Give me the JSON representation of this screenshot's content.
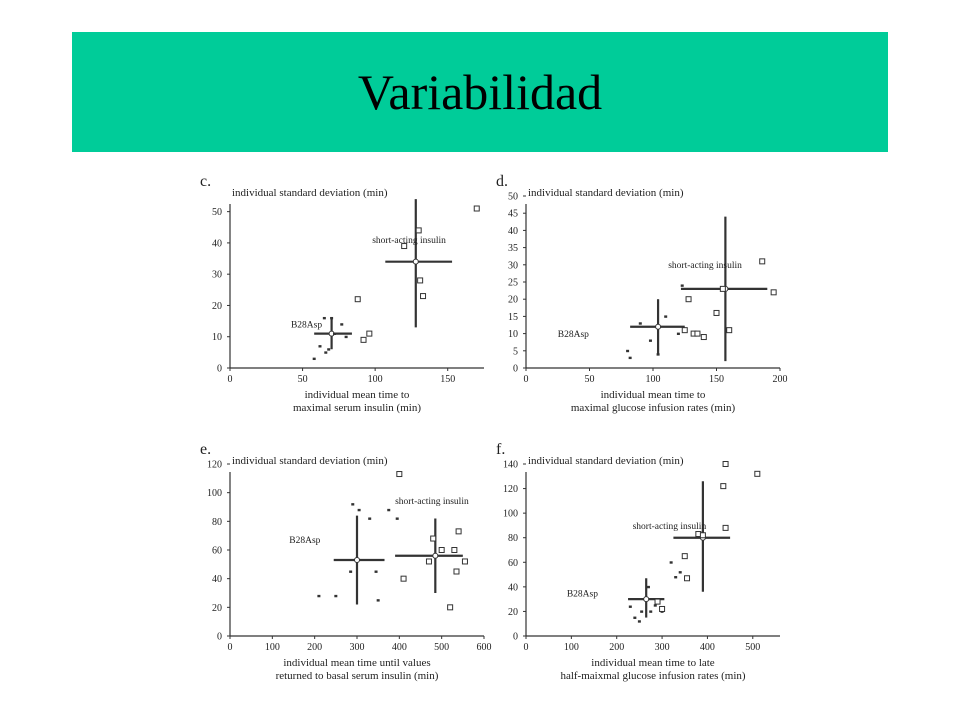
{
  "slide": {
    "title": "Variabilidad",
    "banner_color": "#00cc99"
  },
  "chart_data": [
    {
      "panel": "c.",
      "type": "scatter",
      "ylabel": "individual standard deviation (min)",
      "xlabel": [
        "individual mean time to",
        "maximal serum insulin (min)"
      ],
      "xlim": [
        0,
        175
      ],
      "ylim": [
        0,
        55
      ],
      "xticks": [
        0,
        50,
        100,
        150
      ],
      "yticks": [
        0,
        10,
        20,
        30,
        40,
        50
      ],
      "annotations": [
        {
          "text": "short-acting insulin",
          "at": [
            98,
            40
          ]
        },
        {
          "text": "B28Asp",
          "at": [
            42,
            13
          ]
        }
      ],
      "series": [
        {
          "name": "B28Asp",
          "marker": "dot",
          "points": [
            [
              58,
              3
            ],
            [
              62,
              7
            ],
            [
              65,
              16
            ],
            [
              66,
              5
            ],
            [
              68,
              6
            ],
            [
              70,
              16
            ],
            [
              72,
              11
            ],
            [
              77,
              14
            ],
            [
              80,
              10
            ]
          ]
        },
        {
          "name": "short-acting insulin",
          "marker": "square",
          "points": [
            [
              88,
              22
            ],
            [
              92,
              9
            ],
            [
              96,
              11
            ],
            [
              120,
              39
            ],
            [
              130,
              44
            ],
            [
              131,
              28
            ],
            [
              133,
              23
            ],
            [
              170,
              51
            ]
          ]
        }
      ],
      "crosses": [
        {
          "series": "B28Asp",
          "mean": [
            70,
            11
          ],
          "xerr": [
            58,
            84
          ],
          "yerr": [
            6,
            16
          ]
        },
        {
          "series": "short-acting insulin",
          "mean": [
            128,
            34
          ],
          "xerr": [
            107,
            153
          ],
          "yerr": [
            13,
            54
          ]
        }
      ]
    },
    {
      "panel": "d.",
      "type": "scatter",
      "ylabel": "individual standard deviation (min)",
      "xlabel": [
        "individual mean time to",
        "maximal glucose infusion rates (min)"
      ],
      "xlim": [
        0,
        200
      ],
      "ylim": [
        0,
        50
      ],
      "xticks": [
        0,
        50,
        100,
        150,
        200
      ],
      "yticks": [
        0,
        5,
        10,
        15,
        20,
        25,
        30,
        35,
        40,
        45,
        50
      ],
      "annotations": [
        {
          "text": "short-acting insulin",
          "at": [
            112,
            29
          ]
        },
        {
          "text": "B28Asp",
          "at": [
            25,
            9
          ]
        }
      ],
      "series": [
        {
          "name": "B28Asp",
          "marker": "dot",
          "points": [
            [
              80,
              5
            ],
            [
              82,
              3
            ],
            [
              90,
              13
            ],
            [
              98,
              8
            ],
            [
              104,
              4
            ],
            [
              110,
              15
            ],
            [
              120,
              10
            ],
            [
              123,
              24
            ]
          ]
        },
        {
          "name": "short-acting insulin",
          "marker": "square",
          "points": [
            [
              125,
              11
            ],
            [
              128,
              20
            ],
            [
              132,
              10
            ],
            [
              135,
              10
            ],
            [
              140,
              9
            ],
            [
              150,
              16
            ],
            [
              155,
              23
            ],
            [
              160,
              11
            ],
            [
              186,
              31
            ],
            [
              195,
              22
            ]
          ]
        }
      ],
      "crosses": [
        {
          "series": "B28Asp",
          "mean": [
            104,
            12
          ],
          "xerr": [
            82,
            125
          ],
          "yerr": [
            4,
            20
          ]
        },
        {
          "series": "short-acting insulin",
          "mean": [
            157,
            23
          ],
          "xerr": [
            122,
            190
          ],
          "yerr": [
            2,
            44
          ]
        }
      ]
    },
    {
      "panel": "e.",
      "type": "scatter",
      "ylabel": "individual standard deviation (min)",
      "xlabel": [
        "individual mean time until values",
        "returned to basal  serum insulin (min)"
      ],
      "xlim": [
        0,
        600
      ],
      "ylim": [
        0,
        120
      ],
      "xticks": [
        0,
        100,
        200,
        300,
        400,
        500,
        600
      ],
      "yticks": [
        0,
        20,
        40,
        60,
        80,
        100,
        120
      ],
      "annotations": [
        {
          "text": "short-acting insulin",
          "at": [
            390,
            92
          ]
        },
        {
          "text": "B28Asp",
          "at": [
            140,
            65
          ]
        }
      ],
      "series": [
        {
          "name": "B28Asp",
          "marker": "dot",
          "points": [
            [
              210,
              28
            ],
            [
              250,
              28
            ],
            [
              285,
              45
            ],
            [
              290,
              92
            ],
            [
              305,
              88
            ],
            [
              330,
              82
            ],
            [
              345,
              45
            ],
            [
              350,
              25
            ],
            [
              375,
              88
            ],
            [
              395,
              82
            ]
          ]
        },
        {
          "name": "short-acting insulin",
          "marker": "square",
          "points": [
            [
              400,
              113
            ],
            [
              410,
              40
            ],
            [
              470,
              52
            ],
            [
              480,
              68
            ],
            [
              500,
              60
            ],
            [
              520,
              20
            ],
            [
              530,
              60
            ],
            [
              535,
              45
            ],
            [
              540,
              73
            ],
            [
              555,
              52
            ]
          ]
        }
      ],
      "crosses": [
        {
          "series": "B28Asp",
          "mean": [
            300,
            53
          ],
          "xerr": [
            245,
            365
          ],
          "yerr": [
            22,
            84
          ]
        },
        {
          "series": "short-acting insulin",
          "mean": [
            485,
            56
          ],
          "xerr": [
            390,
            550
          ],
          "yerr": [
            30,
            82
          ]
        }
      ]
    },
    {
      "panel": "f.",
      "type": "scatter",
      "ylabel": "individual standard deviation (min)",
      "xlabel": [
        "individual mean time to late",
        "half-maixmal  glucose infusion rates (min)"
      ],
      "xlim": [
        0,
        560
      ],
      "ylim": [
        0,
        140
      ],
      "xticks": [
        0,
        100,
        200,
        300,
        400,
        500
      ],
      "yticks": [
        0,
        20,
        40,
        60,
        80,
        100,
        120,
        140
      ],
      "annotations": [
        {
          "text": "short-acting insulin",
          "at": [
            235,
            87
          ]
        },
        {
          "text": "B28Asp",
          "at": [
            90,
            32
          ]
        }
      ],
      "series": [
        {
          "name": "B28Asp",
          "marker": "dot",
          "points": [
            [
              230,
              24
            ],
            [
              240,
              15
            ],
            [
              250,
              12
            ],
            [
              255,
              20
            ],
            [
              270,
              40
            ],
            [
              275,
              20
            ],
            [
              285,
              25
            ],
            [
              300,
              20
            ],
            [
              320,
              60
            ],
            [
              330,
              48
            ],
            [
              340,
              52
            ]
          ]
        },
        {
          "name": "short-acting insulin",
          "marker": "square",
          "points": [
            [
              290,
              28
            ],
            [
              300,
              22
            ],
            [
              350,
              65
            ],
            [
              355,
              47
            ],
            [
              380,
              83
            ],
            [
              390,
              82
            ],
            [
              435,
              122
            ],
            [
              440,
              140
            ],
            [
              440,
              88
            ],
            [
              510,
              132
            ]
          ]
        }
      ],
      "crosses": [
        {
          "series": "B28Asp",
          "mean": [
            265,
            30
          ],
          "xerr": [
            225,
            305
          ],
          "yerr": [
            15,
            47
          ]
        },
        {
          "series": "short-acting insulin",
          "mean": [
            390,
            80
          ],
          "xerr": [
            325,
            450
          ],
          "yerr": [
            36,
            126
          ]
        }
      ]
    }
  ]
}
